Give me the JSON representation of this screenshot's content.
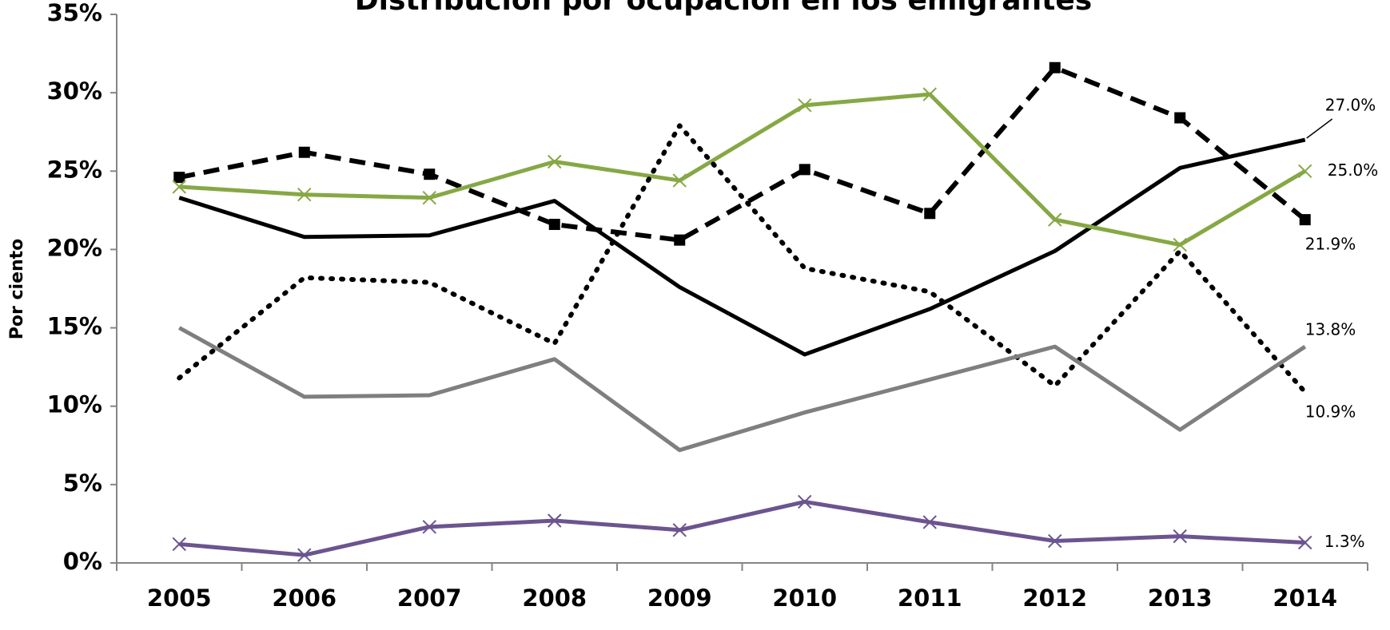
{
  "chart_data": {
    "type": "line",
    "title": "Distribución por ocupación en los emigrantes",
    "y_label": "Por ciento",
    "categories": [
      "2005",
      "2006",
      "2007",
      "2008",
      "2009",
      "2010",
      "2011",
      "2012",
      "2013",
      "2014"
    ],
    "ylim": [
      0,
      35
    ],
    "yticks": [
      {
        "value": 0,
        "label": "0%"
      },
      {
        "value": 5,
        "label": "5%"
      },
      {
        "value": 10,
        "label": "10%"
      },
      {
        "value": 15,
        "label": "15%"
      },
      {
        "value": 20,
        "label": "20%"
      },
      {
        "value": 25,
        "label": "25%"
      },
      {
        "value": 30,
        "label": "30%"
      },
      {
        "value": 35,
        "label": "35%"
      }
    ],
    "grid": false,
    "series": [
      {
        "color": "#000000",
        "style": "solid",
        "marker": "none",
        "values": [
          23.3,
          20.8,
          20.9,
          23.1,
          17.6,
          13.3,
          16.2,
          19.9,
          25.2,
          27.0
        ],
        "value_labels": [
          null,
          null,
          null,
          null,
          null,
          null,
          null,
          null,
          null,
          "27.0%"
        ]
      },
      {
        "color": "#000000",
        "style": "dashed",
        "marker": "square",
        "values": [
          24.6,
          26.2,
          24.8,
          21.6,
          20.6,
          25.1,
          22.3,
          31.6,
          28.4,
          21.9
        ],
        "value_labels": [
          null,
          null,
          null,
          null,
          null,
          null,
          null,
          null,
          null,
          "21.9%"
        ]
      },
      {
        "color": "#86a844",
        "style": "solid",
        "marker": "x",
        "values": [
          24.0,
          23.5,
          23.3,
          25.6,
          24.4,
          29.2,
          29.9,
          21.9,
          20.3,
          25.0
        ],
        "value_labels": [
          null,
          null,
          null,
          null,
          null,
          null,
          null,
          null,
          null,
          "25.0%"
        ]
      },
      {
        "color": "#000000",
        "style": "dotted",
        "marker": "none",
        "values": [
          11.8,
          18.2,
          17.9,
          14.0,
          27.9,
          18.8,
          17.3,
          11.3,
          19.9,
          10.9
        ],
        "value_labels": [
          null,
          null,
          null,
          null,
          null,
          null,
          null,
          null,
          null,
          "10.9%"
        ]
      },
      {
        "color": "#7f7f7f",
        "style": "solid",
        "marker": "none",
        "values": [
          15.0,
          10.6,
          10.7,
          13.0,
          7.2,
          9.6,
          11.7,
          13.8,
          8.5,
          13.8
        ],
        "value_labels": [
          null,
          null,
          null,
          null,
          null,
          null,
          null,
          null,
          null,
          "13.8%"
        ]
      },
      {
        "color": "#6b548f",
        "style": "solid",
        "marker": "x",
        "values": [
          1.2,
          0.5,
          2.3,
          2.7,
          2.1,
          3.9,
          2.6,
          1.4,
          1.7,
          1.3
        ],
        "value_labels": [
          null,
          null,
          null,
          null,
          null,
          null,
          null,
          null,
          null,
          "1.3%"
        ]
      }
    ]
  }
}
